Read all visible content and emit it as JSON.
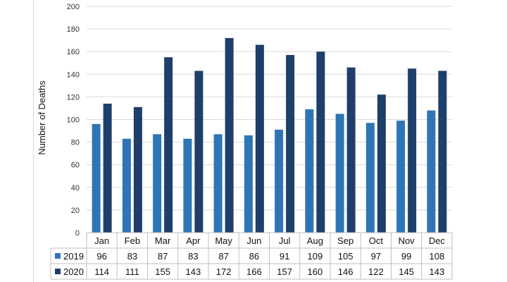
{
  "chart_data": {
    "type": "bar",
    "ylabel": "Number of Deaths",
    "ylim": [
      0,
      200
    ],
    "yticks": [
      0,
      20,
      40,
      60,
      80,
      100,
      120,
      140,
      160,
      180,
      200
    ],
    "grid": true,
    "categories": [
      "Jan",
      "Feb",
      "Mar",
      "Apr",
      "May",
      "Jun",
      "Jul",
      "Aug",
      "Sep",
      "Oct",
      "Nov",
      "Dec"
    ],
    "series": [
      {
        "name": "2019",
        "color": "#2e75b6",
        "values": [
          96,
          83,
          87,
          83,
          87,
          86,
          91,
          109,
          105,
          97,
          99,
          108
        ]
      },
      {
        "name": "2020",
        "color": "#1f3f6b",
        "values": [
          114,
          111,
          155,
          143,
          172,
          166,
          157,
          160,
          146,
          122,
          145,
          143
        ]
      }
    ],
    "data_table": true
  }
}
